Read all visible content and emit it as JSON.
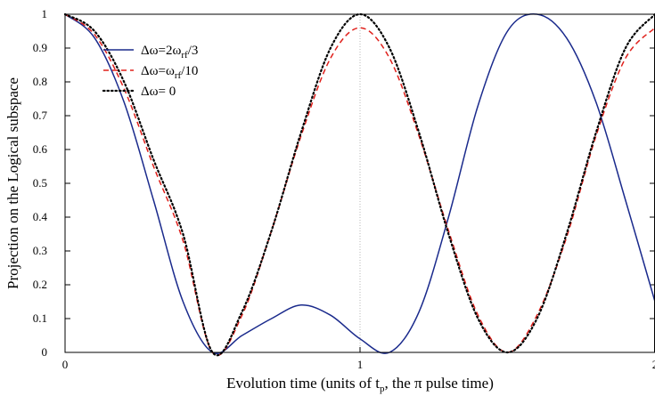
{
  "chart_data": {
    "type": "line",
    "title": "",
    "xlabel": {
      "prefix": "Evolution time (units of t",
      "sub": "p",
      "suffix": ", the π pulse time)"
    },
    "ylabel": "Projection on the Logical subspace",
    "xlim": [
      0,
      2
    ],
    "ylim": [
      0,
      1
    ],
    "x_ticks": [
      {
        "value": 0,
        "label": "0"
      },
      {
        "value": 1,
        "label": "1"
      },
      {
        "value": 2,
        "label": "2"
      }
    ],
    "y_ticks": [
      {
        "value": 0,
        "label": "0"
      },
      {
        "value": 0.1,
        "label": "0.1"
      },
      {
        "value": 0.2,
        "label": "0.2"
      },
      {
        "value": 0.3,
        "label": "0.3"
      },
      {
        "value": 0.4,
        "label": "0.4"
      },
      {
        "value": 0.5,
        "label": "0.5"
      },
      {
        "value": 0.6,
        "label": "0.6"
      },
      {
        "value": 0.7,
        "label": "0.7"
      },
      {
        "value": 0.8,
        "label": "0.8"
      },
      {
        "value": 0.9,
        "label": "0.9"
      },
      {
        "value": 1,
        "label": "1"
      }
    ],
    "legend_position": "top-left",
    "series": [
      {
        "name": {
          "pre": "Δω=2ω",
          "sub": "rf",
          "post": "/3"
        },
        "color": "#1a2a8c",
        "style": "solid",
        "x": [
          0,
          0.1,
          0.2,
          0.3,
          0.4,
          0.5,
          0.6,
          0.7,
          0.8,
          0.9,
          1.0,
          1.1,
          1.2,
          1.3,
          1.4,
          1.5,
          1.6,
          1.7,
          1.8,
          1.9,
          2.0
        ],
        "y": [
          1.0,
          0.93,
          0.74,
          0.45,
          0.15,
          0.0,
          0.05,
          0.1,
          0.14,
          0.11,
          0.04,
          0.0,
          0.12,
          0.4,
          0.73,
          0.95,
          1.0,
          0.93,
          0.74,
          0.45,
          0.15
        ]
      },
      {
        "name": {
          "pre": "Δω=ω",
          "sub": "rf",
          "post": "/10"
        },
        "color": "#e0201b",
        "style": "dashed",
        "x": [
          0,
          0.1,
          0.2,
          0.3,
          0.4,
          0.5,
          0.6,
          0.7,
          0.8,
          0.9,
          1.0,
          1.1,
          1.2,
          1.3,
          1.4,
          1.5,
          1.6,
          1.7,
          1.8,
          1.9,
          2.0
        ],
        "y": [
          1.0,
          0.94,
          0.78,
          0.55,
          0.33,
          0.0,
          0.11,
          0.36,
          0.64,
          0.87,
          0.96,
          0.87,
          0.64,
          0.36,
          0.11,
          0.0,
          0.11,
          0.34,
          0.64,
          0.87,
          0.96
        ]
      },
      {
        "name": {
          "pre": "Δω= 0",
          "sub": "",
          "post": ""
        },
        "color": "#000000",
        "style": "dotted",
        "x": [
          0,
          0.1,
          0.2,
          0.3,
          0.4,
          0.5,
          0.6,
          0.7,
          0.8,
          0.9,
          1.0,
          1.1,
          1.2,
          1.3,
          1.4,
          1.5,
          1.6,
          1.7,
          1.8,
          1.9,
          2.0
        ],
        "y": [
          1.0,
          0.95,
          0.8,
          0.57,
          0.35,
          0.0,
          0.12,
          0.36,
          0.65,
          0.9,
          1.0,
          0.9,
          0.65,
          0.35,
          0.1,
          0.0,
          0.1,
          0.35,
          0.65,
          0.9,
          1.0
        ]
      }
    ]
  }
}
